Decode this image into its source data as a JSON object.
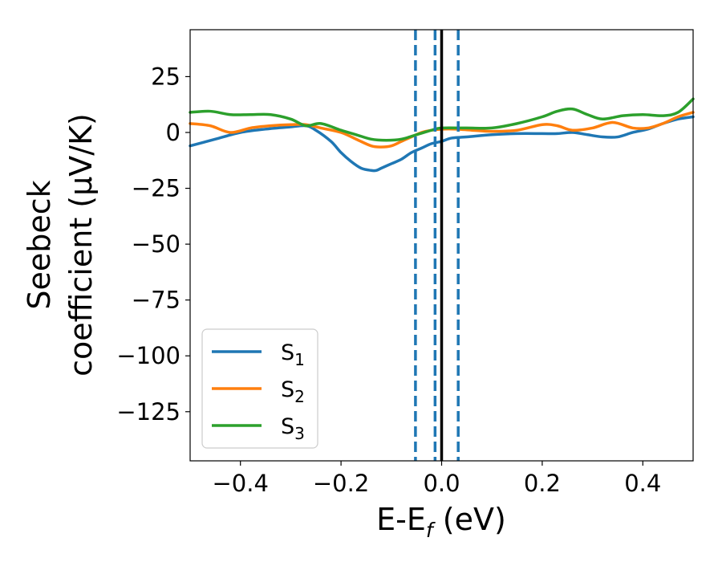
{
  "chart_data": {
    "type": "line",
    "xlabel": "E-E",
    "xlabel_sub": "f",
    "xlabel_unit": " (eV)",
    "ylabel_line1": "Seebeck",
    "ylabel_line2": "coefficient  (μV/K)",
    "xlim": [
      -0.5,
      0.5
    ],
    "ylim": [
      -147,
      46
    ],
    "xticks": [
      -0.4,
      -0.2,
      0.0,
      0.2,
      0.4
    ],
    "xtick_labels": [
      "−0.4",
      "−0.2",
      "0.0",
      "0.2",
      "0.4"
    ],
    "yticks": [
      25,
      0,
      -25,
      -50,
      -75,
      -100,
      -125
    ],
    "ytick_labels": [
      "25",
      "0",
      "−25",
      "−50",
      "−75",
      "−100",
      "−125"
    ],
    "grid": false,
    "legend_placement": "lower-left",
    "series": [
      {
        "name": "S",
        "name_sub": "1",
        "color": "#1f77b4",
        "x": [
          -0.5,
          -0.45,
          -0.4,
          -0.35,
          -0.3,
          -0.27,
          -0.25,
          -0.22,
          -0.2,
          -0.18,
          -0.16,
          -0.14,
          -0.13,
          -0.12,
          -0.1,
          -0.08,
          -0.06,
          -0.04,
          -0.02,
          0.0,
          0.02,
          0.05,
          0.1,
          0.15,
          0.2,
          0.23,
          0.26,
          0.29,
          0.32,
          0.35,
          0.38,
          0.41,
          0.44,
          0.47,
          0.5
        ],
        "y": [
          -6,
          -3,
          0,
          1.5,
          2.5,
          3,
          1,
          -4,
          -9,
          -13,
          -16,
          -17,
          -17,
          -16,
          -14,
          -12,
          -9,
          -7,
          -5,
          -4,
          -2.5,
          -2,
          -1,
          -0.5,
          -0.5,
          -0.5,
          0,
          -1,
          -2,
          -2,
          0,
          1.5,
          4,
          6,
          7
        ]
      },
      {
        "name": "S",
        "name_sub": "2",
        "color": "#ff7f0e",
        "x": [
          -0.5,
          -0.46,
          -0.42,
          -0.38,
          -0.34,
          -0.3,
          -0.27,
          -0.24,
          -0.2,
          -0.17,
          -0.14,
          -0.12,
          -0.1,
          -0.08,
          -0.06,
          -0.04,
          -0.02,
          0.0,
          0.03,
          0.06,
          0.1,
          0.15,
          0.2,
          0.23,
          0.26,
          0.3,
          0.34,
          0.38,
          0.41,
          0.44,
          0.47,
          0.5
        ],
        "y": [
          4,
          3,
          0,
          2,
          3,
          3.5,
          3.5,
          2,
          0,
          -3,
          -6,
          -6.5,
          -6,
          -4,
          -2,
          0,
          1,
          1.5,
          1.5,
          1,
          0.5,
          1,
          3.5,
          3,
          1,
          2,
          4.5,
          2,
          2,
          4,
          7,
          9
        ]
      },
      {
        "name": "S",
        "name_sub": "3",
        "color": "#2ca02c",
        "x": [
          -0.5,
          -0.46,
          -0.42,
          -0.38,
          -0.34,
          -0.3,
          -0.27,
          -0.24,
          -0.2,
          -0.17,
          -0.14,
          -0.11,
          -0.08,
          -0.05,
          -0.02,
          0.0,
          0.05,
          0.1,
          0.15,
          0.2,
          0.23,
          0.26,
          0.29,
          0.32,
          0.36,
          0.4,
          0.44,
          0.47,
          0.5
        ],
        "y": [
          9,
          9.5,
          8,
          8,
          8,
          6,
          3,
          4,
          1,
          -1,
          -3,
          -3.5,
          -3,
          -1,
          1,
          2,
          2,
          2,
          4,
          7,
          9.5,
          10.5,
          8,
          6,
          7.5,
          8,
          7.5,
          9,
          15
        ]
      }
    ],
    "vertical_lines": [
      {
        "x": -0.052,
        "style": "dashed",
        "color": "#1f77b4"
      },
      {
        "x": -0.013,
        "style": "dashed",
        "color": "#1f77b4"
      },
      {
        "x": 0.0,
        "style": "solid",
        "color": "#000000"
      },
      {
        "x": 0.033,
        "style": "dashed",
        "color": "#1f77b4"
      }
    ]
  }
}
